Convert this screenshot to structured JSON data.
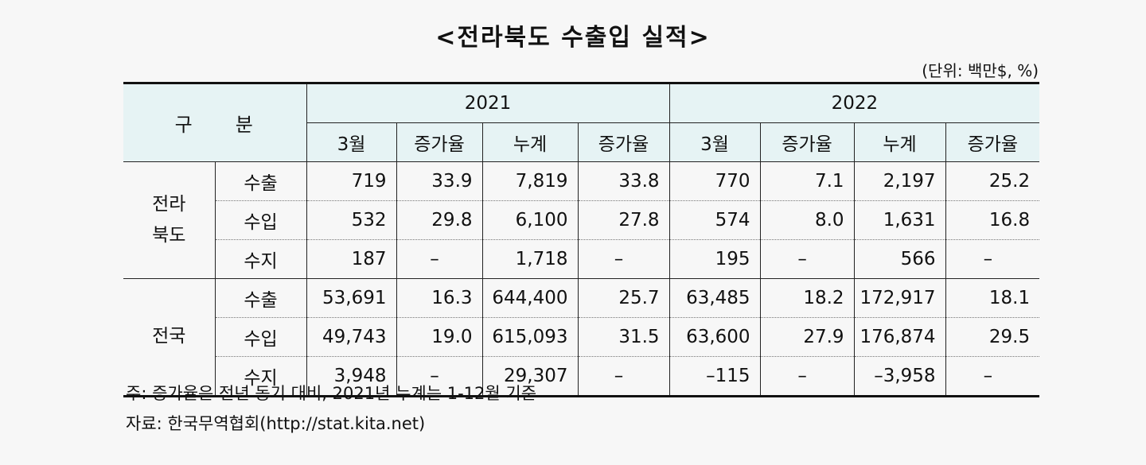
{
  "title": "<전라북도 수출입 실적>",
  "unit": "(단위: 백만$, %)",
  "header": {
    "category": "구　　분",
    "years": [
      "2021",
      "2022"
    ],
    "columns": [
      "3월",
      "증가율",
      "누계",
      "증가율",
      "3월",
      "증가율",
      "누계",
      "증가율"
    ]
  },
  "groups": [
    {
      "region_line1": "전라",
      "region_line2": "북도",
      "rows": [
        {
          "item": "수출",
          "values": [
            "719",
            "33.9",
            "7,819",
            "33.8",
            "770",
            "7.1",
            "2,197",
            "25.2"
          ]
        },
        {
          "item": "수입",
          "values": [
            "532",
            "29.8",
            "6,100",
            "27.8",
            "574",
            "8.0",
            "1,631",
            "16.8"
          ]
        },
        {
          "item": "수지",
          "values": [
            "187",
            "–",
            "1,718",
            "–",
            "195",
            "–",
            "566",
            "–"
          ]
        }
      ]
    },
    {
      "region_line1": "전국",
      "region_line2": "",
      "rows": [
        {
          "item": "수출",
          "values": [
            "53,691",
            "16.3",
            "644,400",
            "25.7",
            "63,485",
            "18.2",
            "172,917",
            "18.1"
          ]
        },
        {
          "item": "수입",
          "values": [
            "49,743",
            "19.0",
            "615,093",
            "31.5",
            "63,600",
            "27.9",
            "176,874",
            "29.5"
          ]
        },
        {
          "item": "수지",
          "values": [
            "3,948",
            "–",
            "29,307",
            "–",
            "–115",
            "–",
            "–3,958",
            "–"
          ]
        }
      ]
    }
  ],
  "notes": {
    "note1": "주: 증가율은 전년 동기 대비, 2021년 누계는 1-12월 기준",
    "note2": "자료: 한국무역협회(http://stat.kita.net)"
  }
}
